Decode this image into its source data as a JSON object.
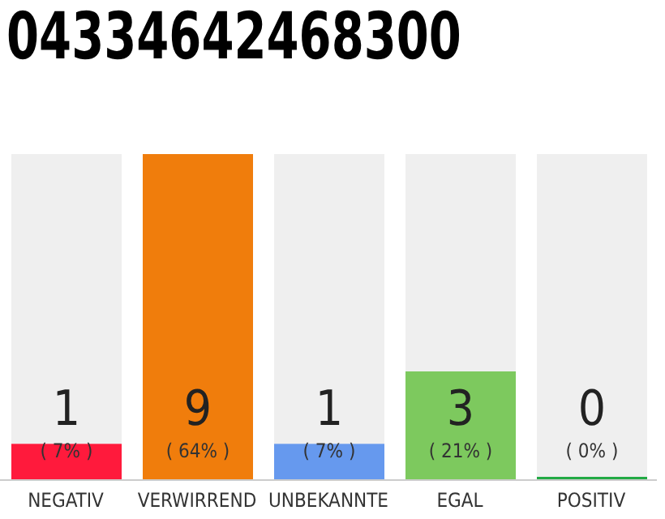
{
  "chart_data": {
    "type": "bar",
    "title": "04334642468300",
    "categories": [
      "NEGATIV",
      "VERWIRREND",
      "UNBEKANNTE",
      "EGAL",
      "POSITIV"
    ],
    "values": [
      1,
      9,
      1,
      3,
      0
    ],
    "colors": [
      "#ff1a3c",
      "#f07d0c",
      "#6699ee",
      "#7dc95e",
      "#22aa44"
    ],
    "data_labels": true,
    "annotations": [
      "( 7% )",
      "( 64% )",
      "( 7% )",
      "( 21% )",
      "( 0% )"
    ],
    "grid": false,
    "legend": false
  }
}
